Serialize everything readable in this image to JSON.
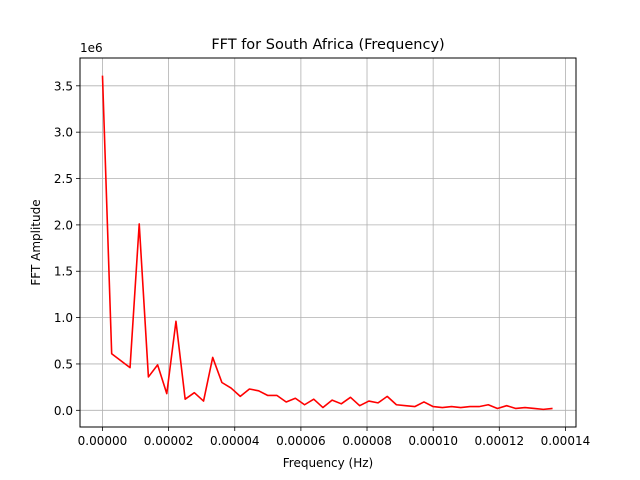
{
  "chart_data": {
    "type": "line",
    "title": "FFT for South Africa (Frequency)",
    "xlabel": "Frequency (Hz)",
    "ylabel": "FFT Amplitude",
    "y_offset_label": "1e6",
    "xlim": [
      -6.8e-06,
      0.0001432
    ],
    "ylim": [
      -0.18,
      3.8
    ],
    "x_ticks": [
      0,
      2e-05,
      4e-05,
      6e-05,
      8e-05,
      0.0001,
      0.00012,
      0.00014
    ],
    "x_tick_labels": [
      "0.00000",
      "0.00002",
      "0.00004",
      "0.00006",
      "0.00008",
      "0.00010",
      "0.00012",
      "0.00014"
    ],
    "y_ticks": [
      0,
      0.5,
      1,
      1.5,
      2,
      2.5,
      3,
      3.5
    ],
    "y_tick_labels": [
      "0.0",
      "0.5",
      "1.0",
      "1.5",
      "2.0",
      "2.5",
      "3.0",
      "3.5"
    ],
    "grid": true,
    "series": [
      {
        "color": "#ff0000",
        "x": [
          0,
          2.78e-06,
          8.33e-06,
          1.111e-05,
          1.389e-05,
          1.667e-05,
          1.944e-05,
          2.222e-05,
          2.5e-05,
          2.778e-05,
          3.056e-05,
          3.333e-05,
          3.611e-05,
          3.889e-05,
          4.167e-05,
          4.444e-05,
          4.722e-05,
          5e-05,
          5.278e-05,
          5.556e-05,
          5.833e-05,
          6.111e-05,
          6.389e-05,
          6.667e-05,
          6.944e-05,
          7.222e-05,
          7.5e-05,
          7.778e-05,
          8.056e-05,
          8.333e-05,
          8.611e-05,
          8.889e-05,
          9.167e-05,
          9.444e-05,
          9.722e-05,
          0.0001,
          0.00010278,
          0.00010556,
          0.00010833,
          0.00011111,
          0.00011389,
          0.00011667,
          0.00011944,
          0.00012222,
          0.000125,
          0.00012778,
          0.00013056,
          0.00013333,
          0.00013611
        ],
        "values": [
          3.61,
          0.61,
          0.46,
          2.01,
          0.36,
          0.49,
          0.18,
          0.96,
          0.12,
          0.19,
          0.1,
          0.57,
          0.3,
          0.24,
          0.15,
          0.23,
          0.21,
          0.16,
          0.16,
          0.09,
          0.13,
          0.06,
          0.12,
          0.03,
          0.11,
          0.07,
          0.14,
          0.05,
          0.1,
          0.08,
          0.15,
          0.06,
          0.05,
          0.04,
          0.09,
          0.04,
          0.03,
          0.04,
          0.03,
          0.04,
          0.04,
          0.06,
          0.02,
          0.05,
          0.02,
          0.03,
          0.02,
          0.01,
          0.02
        ]
      }
    ]
  }
}
